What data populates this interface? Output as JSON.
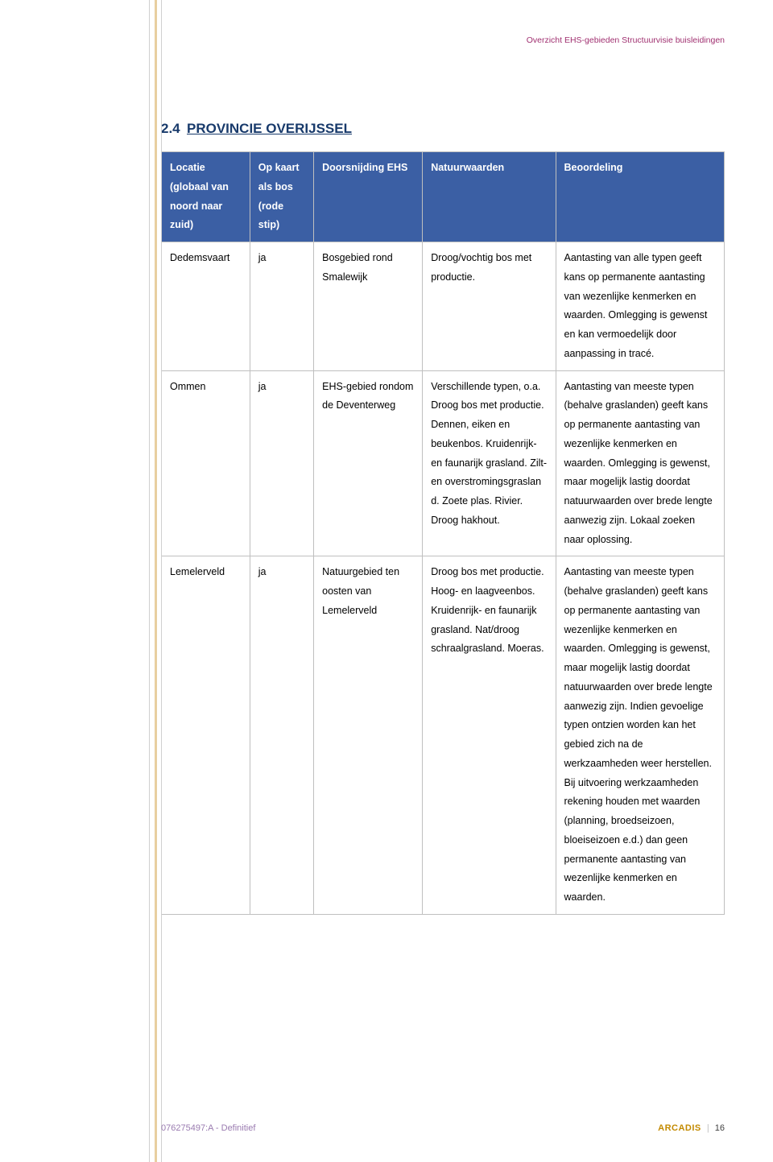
{
  "running_header": "Overzicht EHS-gebieden Structuurvisie buisleidingen",
  "section": {
    "number": "2.4",
    "title": "PROVINCIE OVERIJSSEL"
  },
  "table": {
    "columns": [
      "Locatie (globaal van noord naar zuid)",
      "Op kaart als bos (rode stip)",
      "Doorsnijding EHS",
      "Natuurwaarden",
      "Beoordeling"
    ],
    "rows": [
      {
        "locatie": "Dedemsvaart",
        "opkaart": "ja",
        "doorsnijding": "Bosgebied rond Smalewijk",
        "natuurwaarden": "Droog/vochtig bos met productie.",
        "beoordeling": "Aantasting van alle typen geeft kans op permanente aantasting van wezenlijke kenmerken en waarden. Omlegging is gewenst en kan vermoedelijk door aanpassing in tracé."
      },
      {
        "locatie": "Ommen",
        "opkaart": "ja",
        "doorsnijding": "EHS-gebied rondom de Deventerweg",
        "natuurwaarden": "Verschillende typen, o.a. Droog bos met productie. Dennen, eiken en beukenbos. Kruidenrijk- en faunarijk grasland. Zilt- en overstromingsgraslan d. Zoete plas. Rivier. Droog hakhout.",
        "beoordeling": "Aantasting van meeste typen (behalve graslanden) geeft kans op permanente aantasting van wezenlijke kenmerken en waarden. Omlegging is gewenst, maar mogelijk lastig doordat natuurwaarden over brede lengte aanwezig zijn. Lokaal zoeken naar oplossing."
      },
      {
        "locatie": "Lemelerveld",
        "opkaart": "ja",
        "doorsnijding": "Natuurgebied ten oosten van Lemelerveld",
        "natuurwaarden": "Droog bos met productie. Hoog- en laagveenbos. Kruidenrijk- en faunarijk grasland. Nat/droog schraalgrasland. Moeras.",
        "beoordeling": "Aantasting van meeste typen (behalve graslanden) geeft kans op permanente aantasting van wezenlijke kenmerken en waarden. Omlegging is gewenst, maar mogelijk lastig doordat natuurwaarden over brede lengte aanwezig zijn. Indien gevoelige typen ontzien worden kan het gebied zich na de werkzaamheden weer herstellen. Bij uitvoering werkzaamheden rekening houden met waarden (planning, broedseizoen, bloeiseizoen e.d.) dan geen permanente aantasting van wezenlijke kenmerken en waarden."
      }
    ]
  },
  "footer": {
    "left": "076275497:A - Definitief",
    "brand": "ARCADIS",
    "page": "16"
  }
}
